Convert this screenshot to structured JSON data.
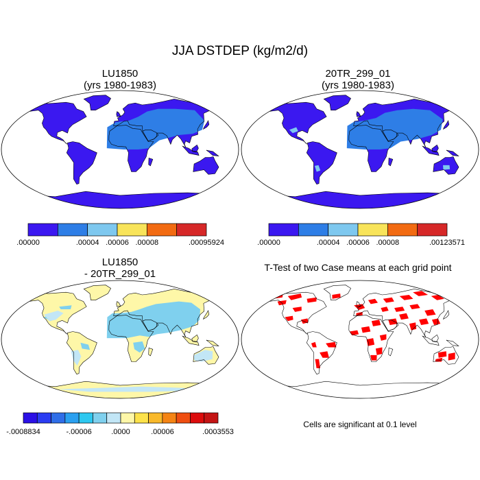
{
  "page": {
    "title": "JJA DSTDEP (kg/m2/d)",
    "footnote": "Cells are significant at 0.1 level"
  },
  "chart_data": [
    {
      "type": "heatmap",
      "title_line1": "LU1850",
      "title_line2": "(yrs 1980-1983)",
      "colors": [
        "#3b18f0",
        "#2e7ee6",
        "#7ec8ef",
        "#f8e45a",
        "#f26b12",
        "#d62828"
      ],
      "colorbar_labels": [
        ".00000",
        ".00004",
        ".00006",
        ".00008",
        ".00095924"
      ],
      "colorbar_label_boundaries": [
        0,
        2,
        3,
        4,
        6
      ]
    },
    {
      "type": "heatmap",
      "title_line1": "20TR_299_01",
      "title_line2": "(yrs 1980-1983)",
      "colors": [
        "#3b18f0",
        "#2e7ee6",
        "#7ec8ef",
        "#f8e45a",
        "#f26b12",
        "#d62828"
      ],
      "colorbar_labels": [
        ".00000",
        ".00004",
        ".00006",
        ".00008",
        ".00123571"
      ],
      "colorbar_label_boundaries": [
        0,
        2,
        3,
        4,
        6
      ]
    },
    {
      "type": "heatmap",
      "title_line1": "LU1850",
      "title_line2": "- 20TR_299_01",
      "colors": [
        "#2b10e6",
        "#2a3cf2",
        "#2f6ee8",
        "#2aa0f0",
        "#2dc8f0",
        "#7fd0ee",
        "#c2e6f6",
        "#fef7a8",
        "#fde24a",
        "#f9b92a",
        "#f58414",
        "#ef4e10",
        "#dc0c0c",
        "#c41414"
      ],
      "colorbar_labels": [
        "-.0008834",
        "-.00006",
        ".0000",
        ".00006",
        ".0003553"
      ],
      "colorbar_label_boundaries": [
        0,
        4,
        7,
        10,
        14
      ]
    },
    {
      "type": "heatmap",
      "title": "T-Test of two Case means at each grid point",
      "significance_level": 0.1,
      "significant_color": "#ff0000"
    }
  ]
}
